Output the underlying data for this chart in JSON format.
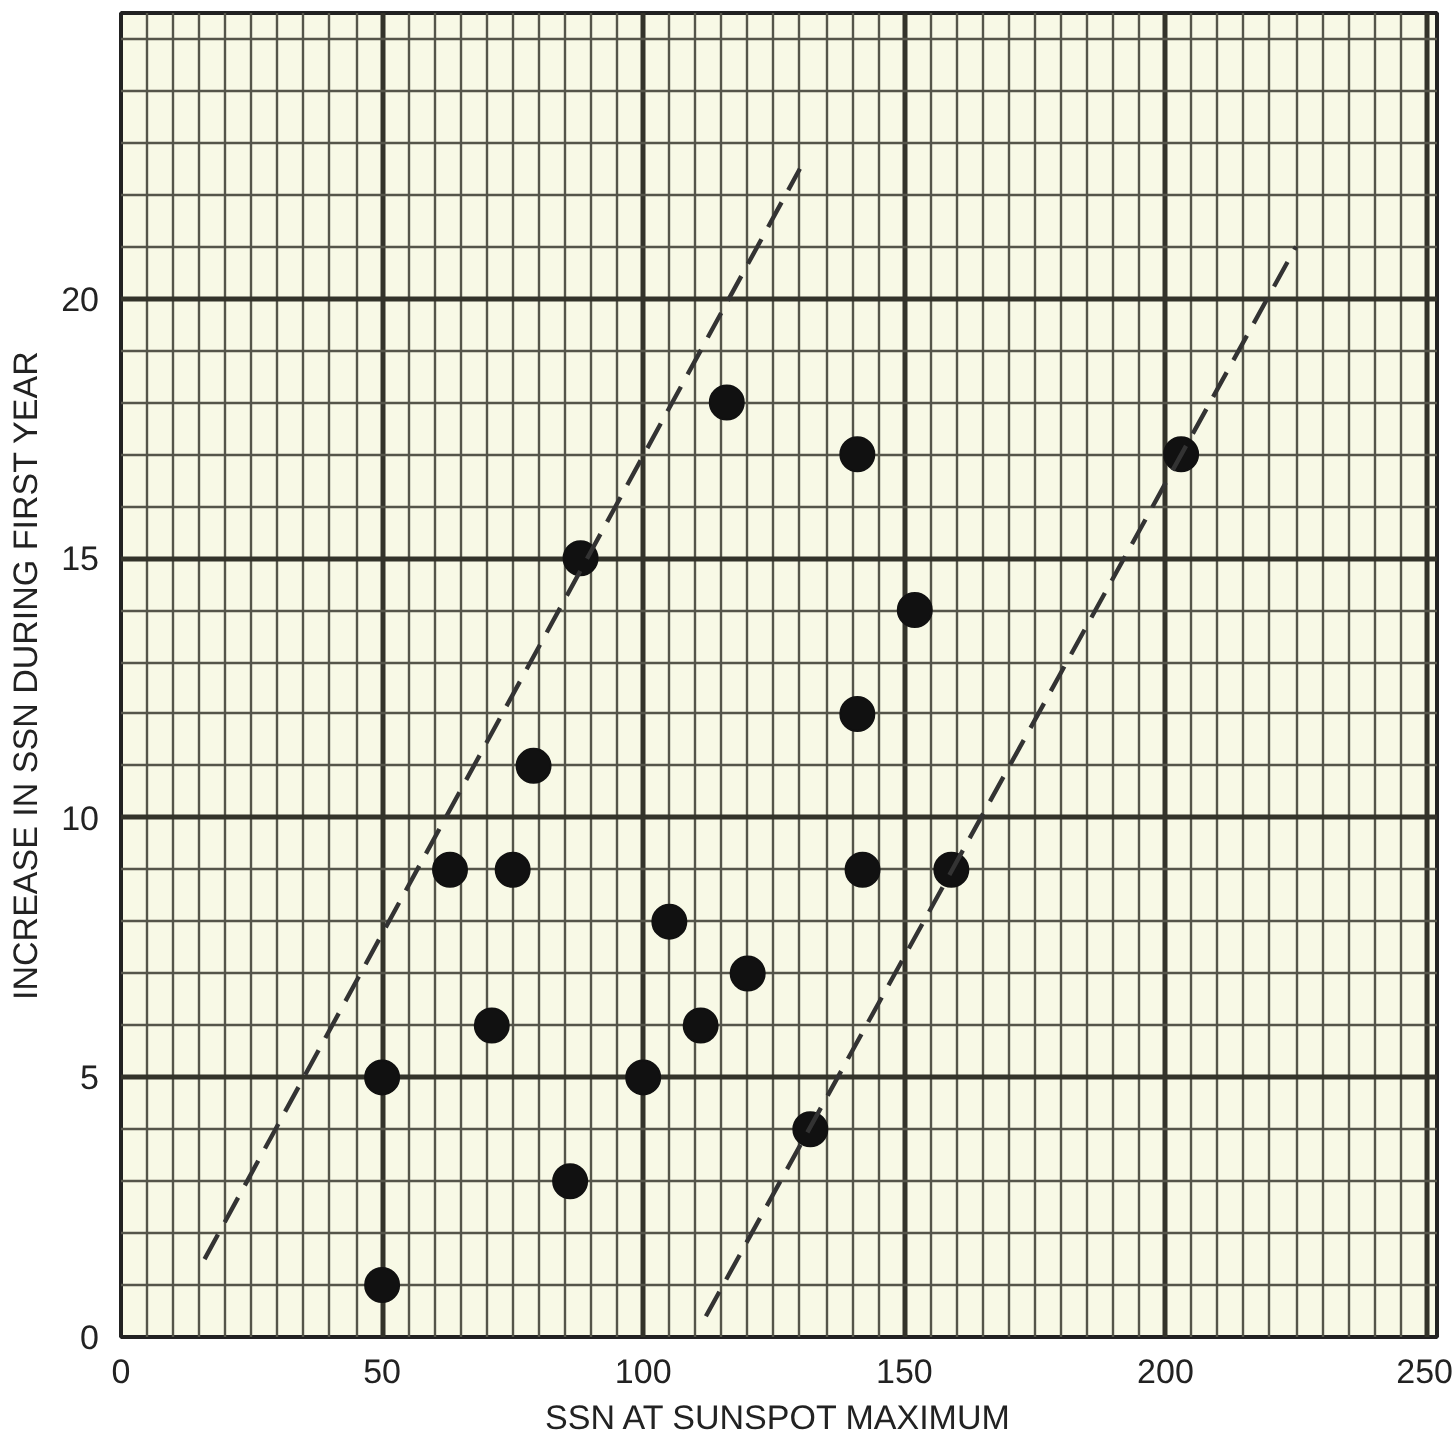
{
  "chart_data": {
    "type": "scatter",
    "xlabel": "SSN AT SUNSPOT MAXIMUM",
    "ylabel": "INCREASE IN SSN DURING FIRST YEAR",
    "xlim": [
      0,
      252
    ],
    "ylim": [
      0,
      25.5
    ],
    "xticks": [
      0,
      {
        "value": 5,
        "label": null
      },
      {
        "value": 10,
        "label": null
      },
      {
        "value": 15,
        "label": null
      },
      {
        "value": 20,
        "label": null
      },
      {
        "value": 25,
        "label": null
      },
      {
        "value": 30,
        "label": null
      },
      {
        "value": 35,
        "label": null
      },
      {
        "value": 40,
        "label": null
      },
      {
        "value": 45,
        "label": null
      },
      50,
      {
        "value": 55,
        "label": null
      },
      {
        "value": 60,
        "label": null
      },
      {
        "value": 65,
        "label": null
      },
      {
        "value": 70,
        "label": null
      },
      {
        "value": 75,
        "label": null
      },
      {
        "value": 80,
        "label": null
      },
      {
        "value": 85,
        "label": null
      },
      {
        "value": 90,
        "label": null
      },
      {
        "value": 95,
        "label": null
      },
      100,
      {
        "value": 105,
        "label": null
      },
      {
        "value": 110,
        "label": null
      },
      {
        "value": 115,
        "label": null
      },
      {
        "value": 120,
        "label": null
      },
      {
        "value": 125,
        "label": null
      },
      {
        "value": 130,
        "label": null
      },
      {
        "value": 135,
        "label": null
      },
      {
        "value": 140,
        "label": null
      },
      {
        "value": 145,
        "label": null
      },
      150,
      {
        "value": 155,
        "label": null
      },
      {
        "value": 160,
        "label": null
      },
      {
        "value": 165,
        "label": null
      },
      {
        "value": 170,
        "label": null
      },
      {
        "value": 175,
        "label": null
      },
      {
        "value": 180,
        "label": null
      },
      {
        "value": 185,
        "label": null
      },
      {
        "value": 190,
        "label": null
      },
      {
        "value": 195,
        "label": null
      },
      200,
      {
        "value": 205,
        "label": null
      },
      {
        "value": 210,
        "label": null
      },
      {
        "value": 215,
        "label": null
      },
      {
        "value": 220,
        "label": null
      },
      {
        "value": 225,
        "label": null
      },
      {
        "value": 230,
        "label": null
      },
      {
        "value": 235,
        "label": null
      },
      {
        "value": 240,
        "label": null
      },
      {
        "value": 245,
        "label": null
      },
      250
    ],
    "yticks": [
      0,
      {
        "value": 1,
        "label": null
      },
      {
        "value": 2,
        "label": null
      },
      {
        "value": 3,
        "label": null
      },
      {
        "value": 4,
        "label": null
      },
      5,
      {
        "value": 6,
        "label": null
      },
      {
        "value": 7,
        "label": null
      },
      {
        "value": 8,
        "label": null
      },
      {
        "value": 9,
        "label": null
      },
      10,
      {
        "value": 11,
        "label": null
      },
      {
        "value": 12,
        "label": null
      },
      {
        "value": 13,
        "label": null
      },
      {
        "value": 14,
        "label": null
      },
      15,
      {
        "value": 16,
        "label": null
      },
      {
        "value": 17,
        "label": null
      },
      {
        "value": 18,
        "label": null
      },
      {
        "value": 19,
        "label": null
      },
      20,
      {
        "value": 21,
        "label": null
      },
      {
        "value": 22,
        "label": null
      },
      {
        "value": 23,
        "label": null
      },
      {
        "value": 24,
        "label": null
      },
      {
        "value": 25,
        "label": null
      }
    ],
    "grid": true,
    "series": [
      {
        "marker": "circle",
        "color": "#111111",
        "x": [
          50,
          50,
          86,
          71,
          63,
          75,
          79,
          88,
          116,
          105,
          100,
          111,
          120,
          141,
          152,
          141,
          142,
          159,
          132,
          203
        ],
        "values": [
          1,
          5,
          3,
          6,
          9,
          9,
          11,
          15,
          18,
          8,
          5,
          6,
          7,
          17,
          14,
          12,
          9,
          9,
          4,
          17
        ]
      },
      {
        "type": "line",
        "line_style": "dashed",
        "color": "#333333",
        "x": [
          16,
          130
        ],
        "values": [
          1.5,
          22.5
        ]
      },
      {
        "type": "line",
        "line_style": "dashed",
        "color": "#333333",
        "x": [
          112,
          225
        ],
        "values": [
          0.4,
          21
        ]
      }
    ]
  }
}
